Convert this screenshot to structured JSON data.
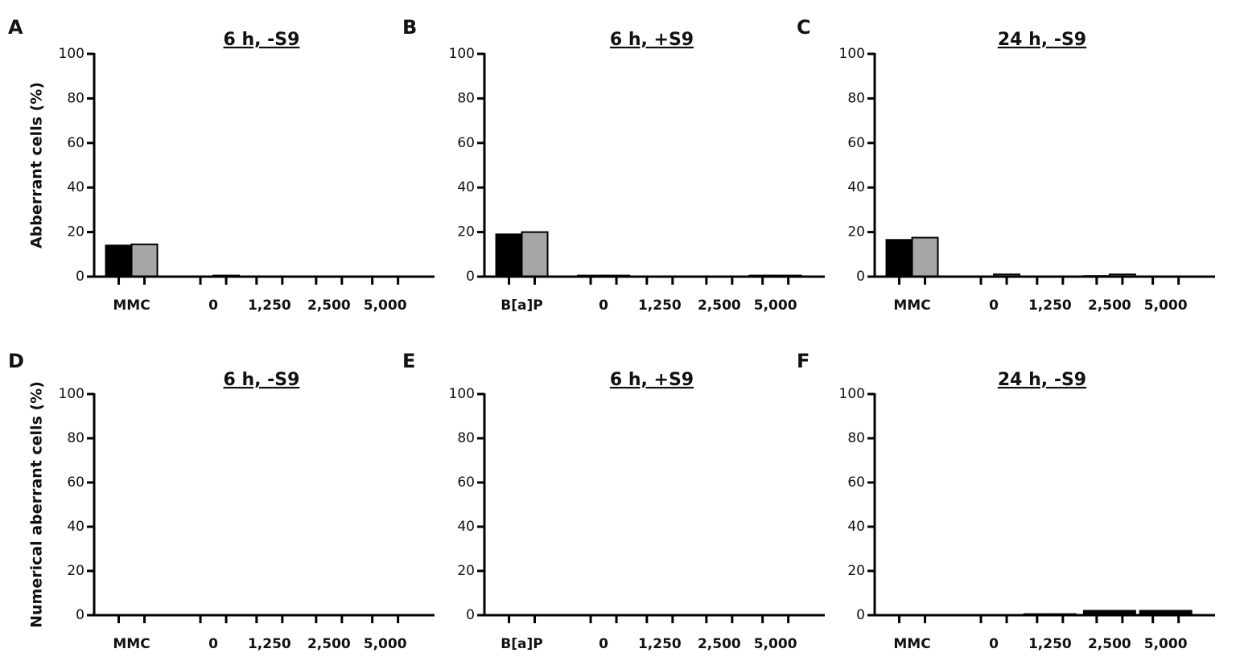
{
  "chart_data": [
    {
      "type": "bar",
      "panel": "A",
      "title": "6 h, -S9",
      "ylabel": "Abberrant cells (%)",
      "categories": [
        "MMC",
        "0",
        "1,250",
        "2,500",
        "5,000"
      ],
      "series": [
        {
          "color": "#000000",
          "values": [
            14,
            0,
            0,
            0,
            0
          ]
        },
        {
          "color": "#a6a6a6",
          "values": [
            14.5,
            0.5,
            0,
            0,
            0
          ]
        }
      ],
      "ylim": [
        0,
        100
      ],
      "yticks": [
        0,
        20,
        40,
        60,
        80,
        100
      ]
    },
    {
      "type": "bar",
      "panel": "B",
      "title": "6 h, +S9",
      "categories": [
        "B[a]P",
        "0",
        "1,250",
        "2,500",
        "5,000"
      ],
      "series": [
        {
          "color": "#000000",
          "values": [
            19,
            0.5,
            0,
            0,
            0.5
          ]
        },
        {
          "color": "#a6a6a6",
          "values": [
            20,
            0.5,
            0,
            0,
            0.5
          ]
        }
      ],
      "ylim": [
        0,
        100
      ],
      "yticks": [
        0,
        20,
        40,
        60,
        80,
        100
      ]
    },
    {
      "type": "bar",
      "panel": "C",
      "title": "24 h, -S9",
      "categories": [
        "MMC",
        "0",
        "1,250",
        "2,500",
        "5,000"
      ],
      "series": [
        {
          "color": "#000000",
          "values": [
            16.5,
            0,
            0,
            0.3,
            0
          ]
        },
        {
          "color": "#a6a6a6",
          "values": [
            17.5,
            1,
            0,
            1,
            0
          ]
        }
      ],
      "ylim": [
        0,
        100
      ],
      "yticks": [
        0,
        20,
        40,
        60,
        80,
        100
      ]
    },
    {
      "type": "bar",
      "panel": "D",
      "title": "6 h, -S9",
      "ylabel": "Numerical aberrant cells (%)",
      "categories": [
        "MMC",
        "0",
        "1,250",
        "2,500",
        "5,000"
      ],
      "series": [
        {
          "color": "#000000",
          "values": [
            0,
            0,
            0,
            0,
            0
          ]
        },
        {
          "color": "#000000",
          "values": [
            0,
            0,
            0,
            0,
            0
          ]
        }
      ],
      "ylim": [
        0,
        100
      ],
      "yticks": [
        0,
        20,
        40,
        60,
        80,
        100
      ]
    },
    {
      "type": "bar",
      "panel": "E",
      "title": "6 h, +S9",
      "categories": [
        "B[a]P",
        "0",
        "1,250",
        "2,500",
        "5,000"
      ],
      "series": [
        {
          "color": "#000000",
          "values": [
            0,
            0,
            0,
            0,
            0
          ]
        },
        {
          "color": "#000000",
          "values": [
            0,
            0,
            0,
            0,
            0
          ]
        }
      ],
      "ylim": [
        0,
        100
      ],
      "yticks": [
        0,
        20,
        40,
        60,
        80,
        100
      ]
    },
    {
      "type": "bar",
      "panel": "F",
      "title": "24 h, -S9",
      "categories": [
        "MMC",
        "0",
        "1,250",
        "2,500",
        "5,000"
      ],
      "series": [
        {
          "color": "#000000",
          "values": [
            0,
            0,
            0.5,
            2,
            2
          ]
        },
        {
          "color": "#000000",
          "values": [
            0,
            0,
            0.5,
            2,
            2
          ]
        }
      ],
      "ylim": [
        0,
        100
      ],
      "yticks": [
        0,
        20,
        40,
        60,
        80,
        100
      ]
    }
  ]
}
